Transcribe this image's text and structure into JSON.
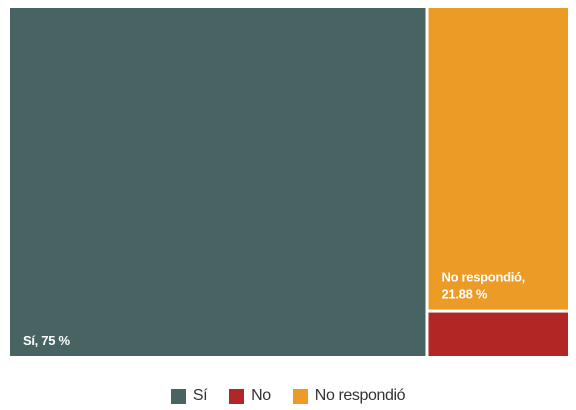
{
  "chart_data": {
    "type": "treemap",
    "categories": [
      "Sí",
      "No",
      "No respondió"
    ],
    "values": [
      75,
      3.12,
      21.88
    ],
    "unit": "%",
    "colors": [
      "#476462",
      "#b22626",
      "#ec9b26"
    ],
    "labels": [
      "Sí, 75 %",
      "",
      "No respondió,|21.88 %"
    ],
    "legend": {
      "placement": "bottom-center",
      "items": [
        {
          "label": "Sí",
          "color": "#476462"
        },
        {
          "label": "No",
          "color": "#b22626"
        },
        {
          "label": "No respondió",
          "color": "#ec9b26"
        }
      ]
    }
  }
}
